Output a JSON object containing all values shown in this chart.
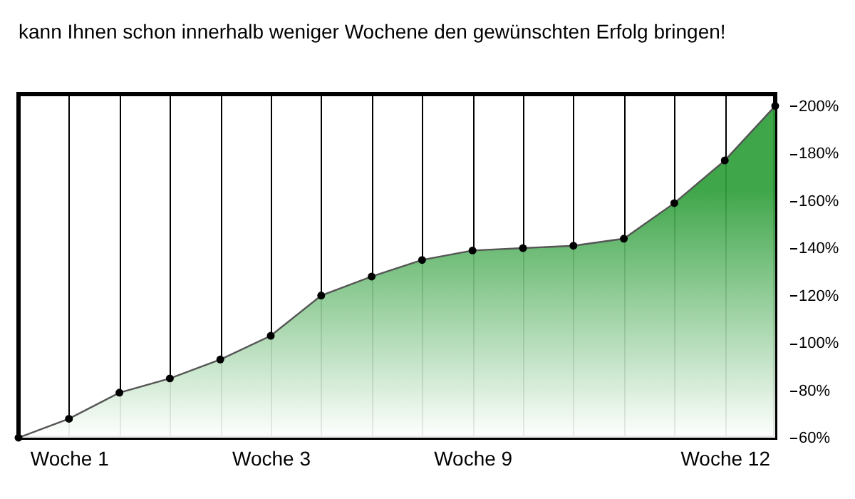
{
  "chart_data": {
    "type": "area",
    "title": "kann Ihnen schon innerhalb weniger Wochene den gewünschten Erfolg bringen!",
    "categories": [
      null,
      "Woche 1",
      null,
      null,
      null,
      "Woche 3",
      null,
      null,
      null,
      "Woche 9",
      null,
      null,
      null,
      null,
      "Woche 12",
      null
    ],
    "series": [
      {
        "color": "#2e9e3a",
        "values": [
          60,
          68,
          79,
          85,
          93,
          103,
          120,
          128,
          135,
          139,
          140,
          141,
          144,
          159,
          177,
          200
        ]
      }
    ],
    "ylim": [
      60,
      205
    ],
    "yticks": [
      {
        "value": 60,
        "label": "60%"
      },
      {
        "value": 80,
        "label": "80%"
      },
      {
        "value": 100,
        "label": "100%"
      },
      {
        "value": 120,
        "label": "120%"
      },
      {
        "value": 140,
        "label": "140%"
      },
      {
        "value": 160,
        "label": "160%"
      },
      {
        "value": 180,
        "label": "180%"
      },
      {
        "value": 200,
        "label": "200%"
      }
    ],
    "grid": "x",
    "marker": "circle"
  }
}
